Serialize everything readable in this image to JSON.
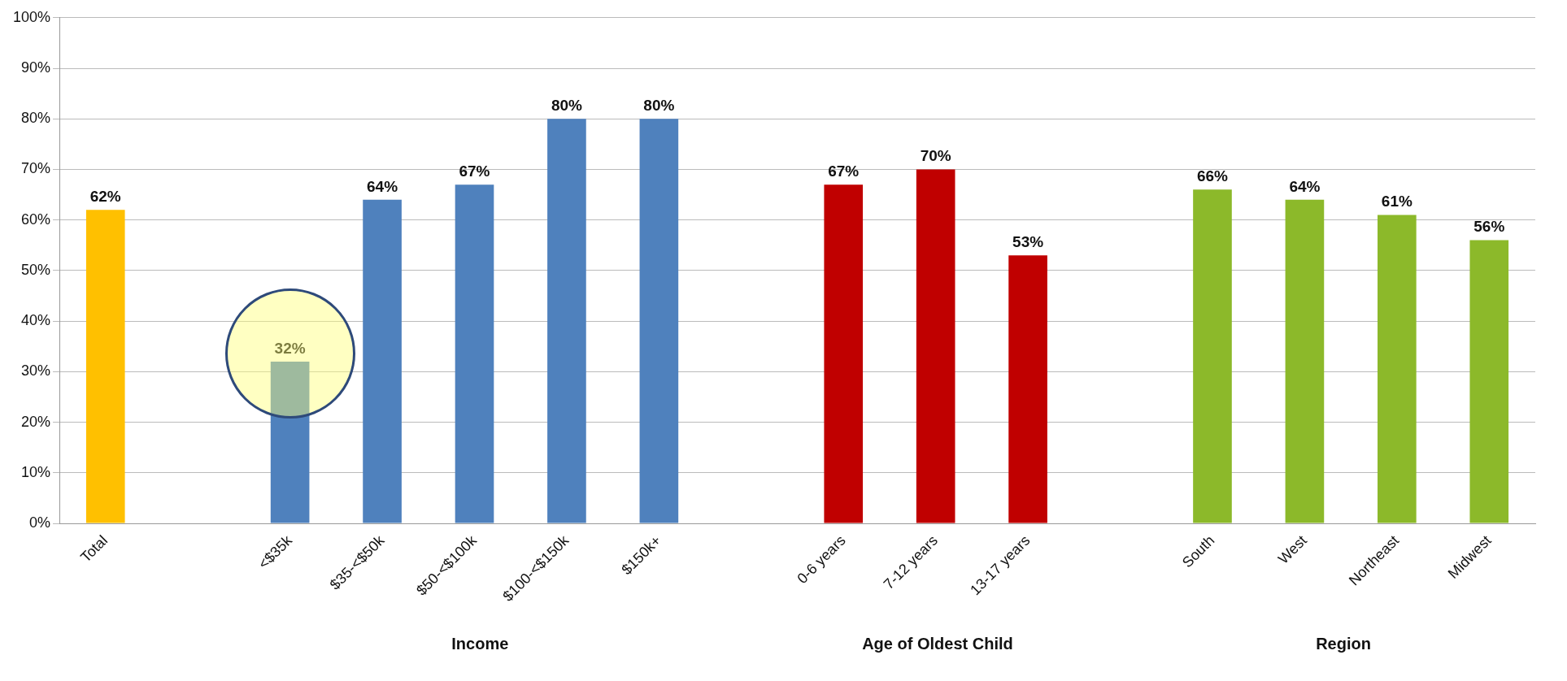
{
  "chart_data": {
    "type": "bar",
    "categories": [
      "Total",
      null,
      "<$35k",
      "$35-<$50k",
      "$50-<$100k",
      "$100-<$150k",
      "$150k+",
      null,
      "0-6 years",
      "7-12 years",
      "13-17 years",
      null,
      "South",
      "West",
      "Northeast",
      "Midwest"
    ],
    "values": [
      62,
      null,
      32,
      64,
      67,
      80,
      80,
      null,
      67,
      70,
      53,
      null,
      66,
      64,
      61,
      56
    ],
    "colors": [
      "#ffc000",
      null,
      "#4f81bd",
      "#4f81bd",
      "#4f81bd",
      "#4f81bd",
      "#4f81bd",
      null,
      "#c00000",
      "#c00000",
      "#c00000",
      null,
      "#8cb92a",
      "#8cb92a",
      "#8cb92a",
      "#8cb92a"
    ],
    "value_labels": [
      "62%",
      null,
      "32%",
      "64%",
      "67%",
      "80%",
      "80%",
      null,
      "67%",
      "70%",
      "53%",
      null,
      "66%",
      "64%",
      "61%",
      "56%"
    ],
    "ylim": [
      0,
      100
    ],
    "yticks": [
      {
        "value": 0,
        "label": "0%"
      },
      {
        "value": 10,
        "label": "10%"
      },
      {
        "value": 20,
        "label": "20%"
      },
      {
        "value": 30,
        "label": "30%"
      },
      {
        "value": 40,
        "label": "40%"
      },
      {
        "value": 50,
        "label": "50%"
      },
      {
        "value": 60,
        "label": "60%"
      },
      {
        "value": 70,
        "label": "70%"
      },
      {
        "value": 80,
        "label": "80%"
      },
      {
        "value": 90,
        "label": "90%"
      },
      {
        "value": 100,
        "label": "100%"
      }
    ],
    "annotations": [
      "Income",
      "Age of Oldest Child",
      "Region"
    ],
    "grid": "y",
    "legend": false
  }
}
